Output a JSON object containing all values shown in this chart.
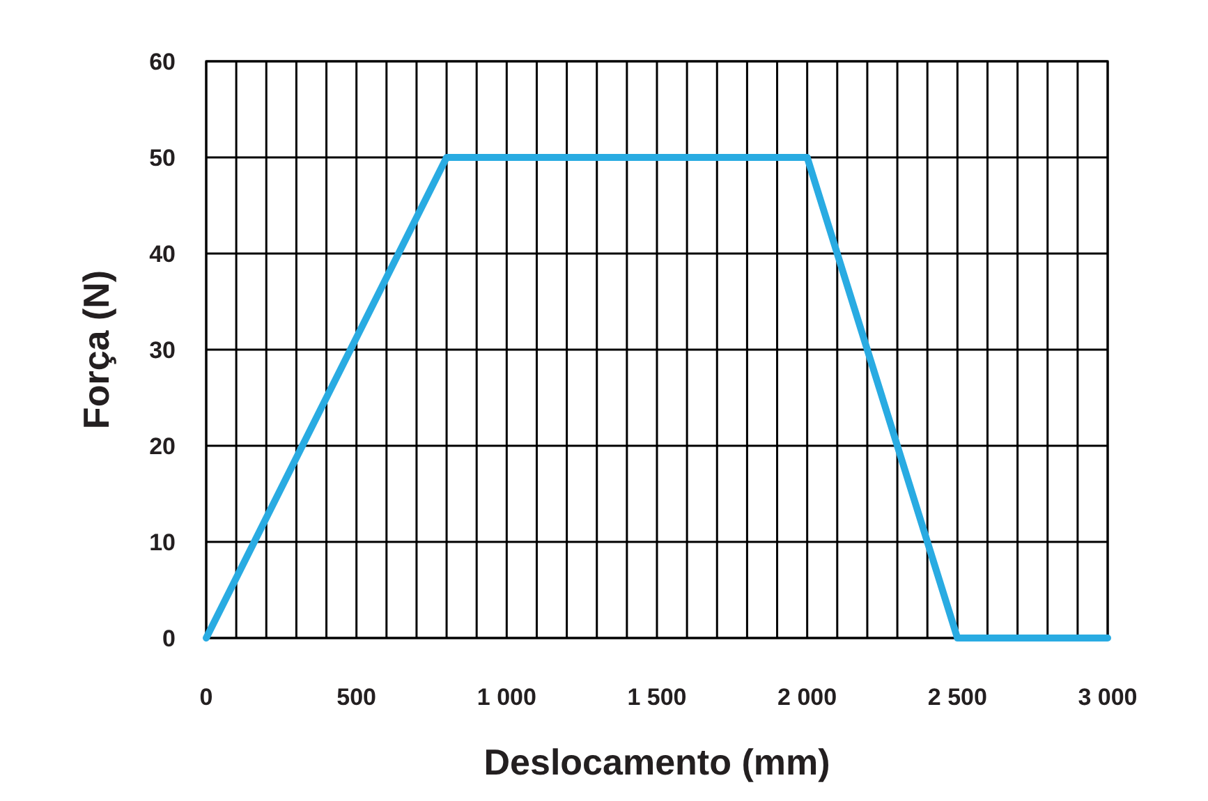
{
  "chart_data": {
    "type": "line",
    "xlabel": "Deslocamento (mm)",
    "ylabel": "Força (N)",
    "x": [
      0,
      800,
      2000,
      2500,
      3000
    ],
    "series": [
      {
        "color": "#29abe2",
        "values": [
          0,
          50,
          50,
          0,
          0
        ]
      }
    ],
    "xlim": [
      0,
      3000
    ],
    "ylim": [
      0,
      60
    ],
    "xticks": [
      0,
      500,
      {
        "value": 1000,
        "label": "1 000"
      },
      {
        "value": 1500,
        "label": "1 500"
      },
      {
        "value": 2000,
        "label": "2 000"
      },
      {
        "value": 2500,
        "label": "2 500"
      },
      {
        "value": 3000,
        "label": "3 000"
      }
    ],
    "yticks": [
      0,
      10,
      20,
      30,
      40,
      50,
      60
    ],
    "grid": true,
    "marker": "none",
    "line_style": "solid"
  }
}
